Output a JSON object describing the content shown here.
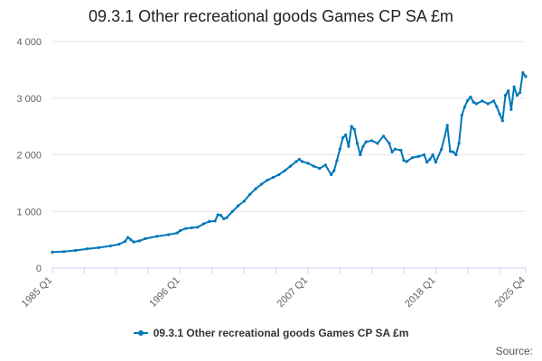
{
  "chart_data": {
    "type": "line",
    "title": "09.3.1 Other recreational goods Games CP SA £m",
    "xlabel": "",
    "ylabel": "",
    "ylim": [
      0,
      4000
    ],
    "yticks": [
      "0",
      "1 000",
      "2 000",
      "3 000",
      "4 000"
    ],
    "yticks_values": [
      0,
      1000,
      2000,
      3000,
      4000
    ],
    "xticks": [
      "1985 Q1",
      "1996 Q1",
      "2007 Q1",
      "2018 Q1",
      "2025 Q4"
    ],
    "xticks_values": [
      1985.0,
      1996.0,
      2007.0,
      2018.0,
      2025.75
    ],
    "xlim": [
      1985.0,
      2025.75
    ],
    "grid": true,
    "legend": "bottom",
    "series": [
      {
        "name": "09.3.1 Other recreational goods Games CP SA £m",
        "color": "#0077bb",
        "points": [
          [
            1985.0,
            280
          ],
          [
            1986.0,
            290
          ],
          [
            1987.0,
            310
          ],
          [
            1988.0,
            340
          ],
          [
            1989.0,
            360
          ],
          [
            1990.0,
            390
          ],
          [
            1990.75,
            420
          ],
          [
            1991.25,
            470
          ],
          [
            1991.5,
            540
          ],
          [
            1991.75,
            500
          ],
          [
            1992.0,
            460
          ],
          [
            1992.5,
            480
          ],
          [
            1993.0,
            520
          ],
          [
            1994.0,
            560
          ],
          [
            1995.0,
            590
          ],
          [
            1995.75,
            620
          ],
          [
            1996.0,
            660
          ],
          [
            1996.5,
            700
          ],
          [
            1997.0,
            710
          ],
          [
            1997.5,
            720
          ],
          [
            1998.0,
            780
          ],
          [
            1998.5,
            820
          ],
          [
            1999.0,
            830
          ],
          [
            1999.25,
            940
          ],
          [
            1999.5,
            930
          ],
          [
            1999.75,
            870
          ],
          [
            2000.0,
            890
          ],
          [
            2000.5,
            1000
          ],
          [
            2001.0,
            1100
          ],
          [
            2001.5,
            1180
          ],
          [
            2002.0,
            1300
          ],
          [
            2002.5,
            1400
          ],
          [
            2003.0,
            1480
          ],
          [
            2003.5,
            1550
          ],
          [
            2004.0,
            1600
          ],
          [
            2004.5,
            1650
          ],
          [
            2005.0,
            1720
          ],
          [
            2005.5,
            1800
          ],
          [
            2006.0,
            1880
          ],
          [
            2006.25,
            1920
          ],
          [
            2006.5,
            1880
          ],
          [
            2007.0,
            1850
          ],
          [
            2007.5,
            1800
          ],
          [
            2008.0,
            1760
          ],
          [
            2008.5,
            1820
          ],
          [
            2009.0,
            1650
          ],
          [
            2009.25,
            1720
          ],
          [
            2009.5,
            1900
          ],
          [
            2009.75,
            2100
          ],
          [
            2010.0,
            2300
          ],
          [
            2010.25,
            2350
          ],
          [
            2010.5,
            2150
          ],
          [
            2010.75,
            2500
          ],
          [
            2011.0,
            2450
          ],
          [
            2011.25,
            2200
          ],
          [
            2011.5,
            2000
          ],
          [
            2011.75,
            2150
          ],
          [
            2012.0,
            2230
          ],
          [
            2012.5,
            2250
          ],
          [
            2013.0,
            2200
          ],
          [
            2013.5,
            2330
          ],
          [
            2014.0,
            2200
          ],
          [
            2014.25,
            2050
          ],
          [
            2014.5,
            2100
          ],
          [
            2015.0,
            2080
          ],
          [
            2015.25,
            1900
          ],
          [
            2015.5,
            1880
          ],
          [
            2016.0,
            1950
          ],
          [
            2016.5,
            1970
          ],
          [
            2017.0,
            2000
          ],
          [
            2017.25,
            1870
          ],
          [
            2017.5,
            1920
          ],
          [
            2017.75,
            2000
          ],
          [
            2018.0,
            1870
          ],
          [
            2018.5,
            2100
          ],
          [
            2019.0,
            2520
          ],
          [
            2019.25,
            2060
          ],
          [
            2019.5,
            2050
          ],
          [
            2019.75,
            2000
          ],
          [
            2020.0,
            2200
          ],
          [
            2020.25,
            2700
          ],
          [
            2020.5,
            2850
          ],
          [
            2020.75,
            2960
          ],
          [
            2021.0,
            3020
          ],
          [
            2021.25,
            2930
          ],
          [
            2021.5,
            2900
          ],
          [
            2022.0,
            2950
          ],
          [
            2022.5,
            2900
          ],
          [
            2023.0,
            2950
          ],
          [
            2023.25,
            2850
          ],
          [
            2023.5,
            2720
          ],
          [
            2023.75,
            2600
          ],
          [
            2024.0,
            3050
          ],
          [
            2024.25,
            3130
          ],
          [
            2024.5,
            2800
          ],
          [
            2024.75,
            3200
          ],
          [
            2025.0,
            3050
          ],
          [
            2025.25,
            3100
          ],
          [
            2025.5,
            3450
          ],
          [
            2025.75,
            3380
          ]
        ]
      }
    ]
  },
  "source_label": "Source:"
}
